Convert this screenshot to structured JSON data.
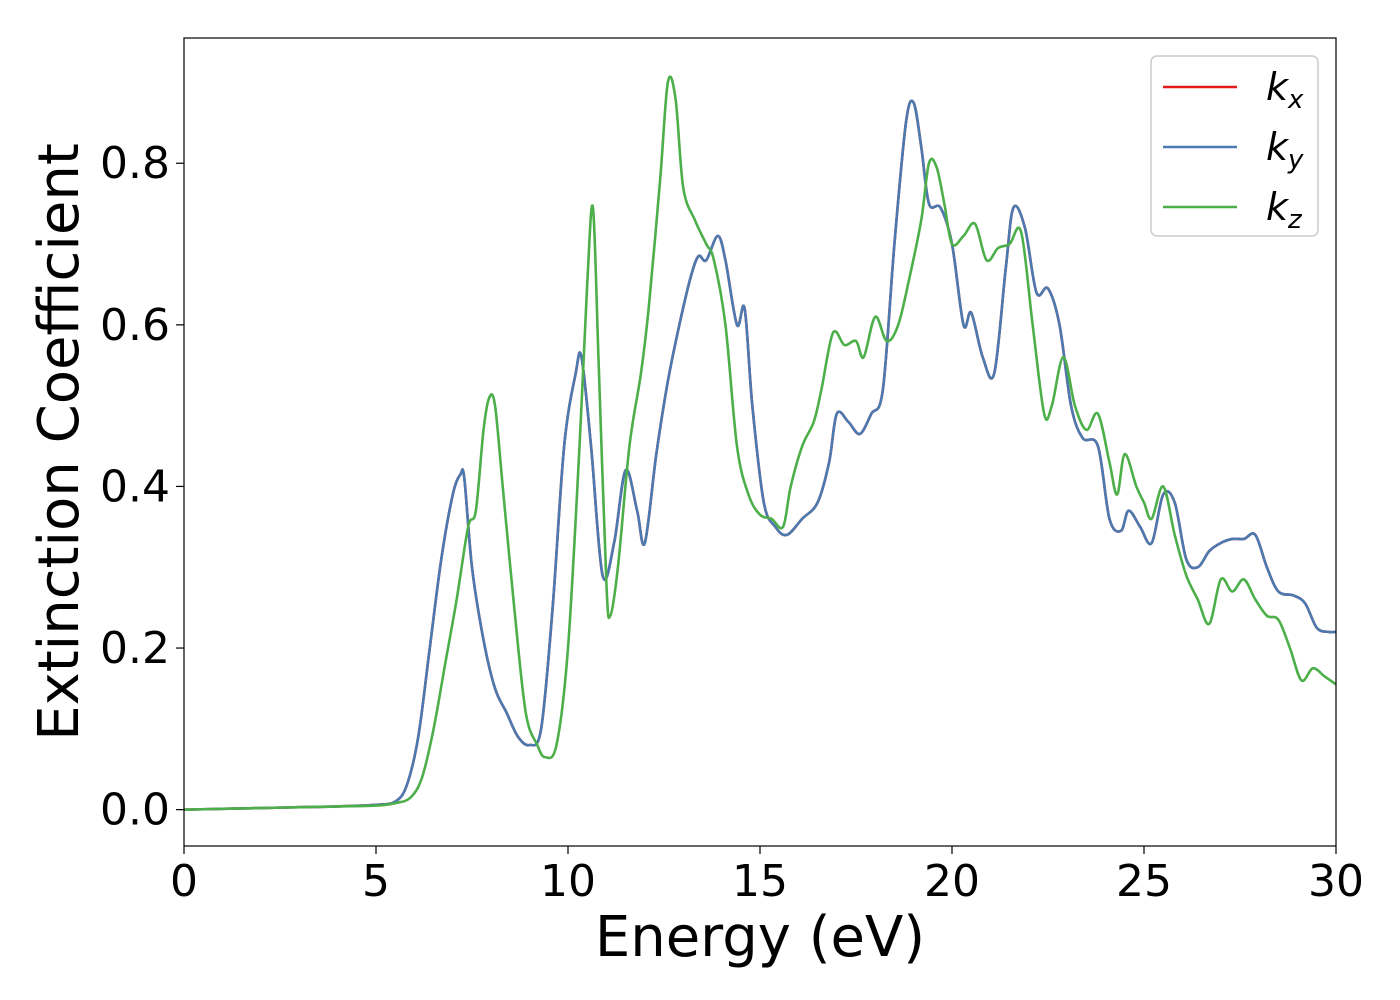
{
  "chart_data": {
    "type": "line",
    "title": "",
    "xlabel": "Energy (eV)",
    "ylabel": "Extinction Coefficient",
    "xlim": [
      0,
      30
    ],
    "ylim": [
      -0.045,
      0.955
    ],
    "xticks": [
      0,
      5,
      10,
      15,
      20,
      25,
      30
    ],
    "xtick_labels": [
      "0",
      "5",
      "10",
      "15",
      "20",
      "25",
      "30"
    ],
    "yticks": [
      0.0,
      0.2,
      0.4,
      0.6,
      0.8
    ],
    "ytick_labels": [
      "0.0",
      "0.2",
      "0.4",
      "0.6",
      "0.8"
    ],
    "grid": false,
    "legend": {
      "position": "top-right",
      "entries": [
        {
          "base": "k",
          "sub": "x",
          "color": "#e41a1c"
        },
        {
          "base": "k",
          "sub": "y",
          "color": "#4a7ab0"
        },
        {
          "base": "k",
          "sub": "z",
          "color": "#4daf4a"
        }
      ]
    },
    "series": [
      {
        "name": "kx",
        "color": "#e41a1c",
        "x": [
          0,
          1,
          2,
          3,
          4,
          5,
          5.5,
          5.8,
          6.1,
          6.4,
          6.7,
          7.0,
          7.2,
          7.3,
          7.5,
          7.8,
          8.1,
          8.4,
          8.7,
          9.0,
          9.3,
          9.6,
          9.9,
          10.2,
          10.35,
          10.6,
          10.9,
          11.2,
          11.5,
          11.8,
          12.0,
          12.3,
          12.6,
          12.9,
          13.2,
          13.4,
          13.6,
          13.9,
          14.1,
          14.4,
          14.6,
          14.8,
          15.1,
          15.4,
          15.7,
          16.1,
          16.5,
          16.8,
          17.0,
          17.3,
          17.6,
          17.9,
          18.2,
          18.5,
          18.8,
          19.0,
          19.2,
          19.4,
          19.7,
          20.0,
          20.3,
          20.5,
          20.8,
          21.1,
          21.4,
          21.6,
          21.9,
          22.2,
          22.5,
          22.8,
          23.1,
          23.4,
          23.8,
          24.1,
          24.4,
          24.6,
          24.9,
          25.2,
          25.5,
          25.8,
          26.1,
          26.4,
          26.7,
          27.0,
          27.3,
          27.6,
          27.9,
          28.2,
          28.5,
          28.9,
          29.2,
          29.5,
          29.8,
          30.0
        ],
        "y": [
          0.0,
          0.001,
          0.002,
          0.003,
          0.004,
          0.006,
          0.01,
          0.03,
          0.09,
          0.2,
          0.31,
          0.39,
          0.415,
          0.41,
          0.3,
          0.21,
          0.15,
          0.12,
          0.09,
          0.08,
          0.1,
          0.25,
          0.45,
          0.54,
          0.56,
          0.45,
          0.29,
          0.33,
          0.42,
          0.37,
          0.33,
          0.44,
          0.53,
          0.6,
          0.66,
          0.685,
          0.68,
          0.71,
          0.68,
          0.6,
          0.62,
          0.5,
          0.38,
          0.35,
          0.34,
          0.36,
          0.38,
          0.43,
          0.49,
          0.48,
          0.465,
          0.49,
          0.52,
          0.7,
          0.85,
          0.875,
          0.82,
          0.75,
          0.745,
          0.7,
          0.6,
          0.615,
          0.56,
          0.54,
          0.67,
          0.745,
          0.72,
          0.64,
          0.645,
          0.6,
          0.5,
          0.46,
          0.45,
          0.36,
          0.345,
          0.37,
          0.35,
          0.33,
          0.39,
          0.38,
          0.31,
          0.3,
          0.32,
          0.33,
          0.335,
          0.335,
          0.34,
          0.3,
          0.27,
          0.265,
          0.255,
          0.225,
          0.22,
          0.22
        ]
      },
      {
        "name": "ky",
        "color": "#4a7ab0",
        "x": [
          0,
          1,
          2,
          3,
          4,
          5,
          5.5,
          5.8,
          6.1,
          6.4,
          6.7,
          7.0,
          7.2,
          7.3,
          7.5,
          7.8,
          8.1,
          8.4,
          8.7,
          9.0,
          9.3,
          9.6,
          9.9,
          10.2,
          10.35,
          10.6,
          10.9,
          11.2,
          11.5,
          11.8,
          12.0,
          12.3,
          12.6,
          12.9,
          13.2,
          13.4,
          13.6,
          13.9,
          14.1,
          14.4,
          14.6,
          14.8,
          15.1,
          15.4,
          15.7,
          16.1,
          16.5,
          16.8,
          17.0,
          17.3,
          17.6,
          17.9,
          18.2,
          18.5,
          18.8,
          19.0,
          19.2,
          19.4,
          19.7,
          20.0,
          20.3,
          20.5,
          20.8,
          21.1,
          21.4,
          21.6,
          21.9,
          22.2,
          22.5,
          22.8,
          23.1,
          23.4,
          23.8,
          24.1,
          24.4,
          24.6,
          24.9,
          25.2,
          25.5,
          25.8,
          26.1,
          26.4,
          26.7,
          27.0,
          27.3,
          27.6,
          27.9,
          28.2,
          28.5,
          28.9,
          29.2,
          29.5,
          29.8,
          30.0
        ],
        "y": [
          0.0,
          0.001,
          0.002,
          0.003,
          0.004,
          0.006,
          0.01,
          0.03,
          0.09,
          0.2,
          0.31,
          0.39,
          0.415,
          0.41,
          0.3,
          0.21,
          0.15,
          0.12,
          0.09,
          0.08,
          0.1,
          0.25,
          0.45,
          0.54,
          0.56,
          0.45,
          0.29,
          0.33,
          0.42,
          0.37,
          0.33,
          0.44,
          0.53,
          0.6,
          0.66,
          0.685,
          0.68,
          0.71,
          0.68,
          0.6,
          0.62,
          0.5,
          0.38,
          0.35,
          0.34,
          0.36,
          0.38,
          0.43,
          0.49,
          0.48,
          0.465,
          0.49,
          0.52,
          0.7,
          0.85,
          0.875,
          0.82,
          0.75,
          0.745,
          0.7,
          0.6,
          0.615,
          0.56,
          0.54,
          0.67,
          0.745,
          0.72,
          0.64,
          0.645,
          0.6,
          0.5,
          0.46,
          0.45,
          0.36,
          0.345,
          0.37,
          0.35,
          0.33,
          0.39,
          0.38,
          0.31,
          0.3,
          0.32,
          0.33,
          0.335,
          0.335,
          0.34,
          0.3,
          0.27,
          0.265,
          0.255,
          0.225,
          0.22,
          0.22
        ]
      },
      {
        "name": "kz",
        "color": "#4daf4a",
        "x": [
          0,
          1,
          2,
          3,
          4,
          5,
          5.5,
          5.9,
          6.2,
          6.5,
          6.8,
          7.1,
          7.4,
          7.6,
          7.8,
          7.95,
          8.1,
          8.3,
          8.6,
          8.9,
          9.2,
          9.4,
          9.7,
          10.0,
          10.3,
          10.5,
          10.65,
          10.8,
          11.0,
          11.1,
          11.3,
          11.6,
          11.9,
          12.1,
          12.4,
          12.6,
          12.8,
          13.0,
          13.3,
          13.6,
          13.8,
          14.1,
          14.4,
          14.7,
          15.0,
          15.3,
          15.6,
          15.8,
          16.1,
          16.4,
          16.6,
          16.9,
          17.2,
          17.5,
          17.7,
          18.0,
          18.3,
          18.6,
          18.9,
          19.2,
          19.4,
          19.6,
          19.8,
          20.0,
          20.3,
          20.6,
          20.9,
          21.2,
          21.5,
          21.8,
          22.1,
          22.4,
          22.6,
          22.9,
          23.2,
          23.5,
          23.8,
          24.1,
          24.3,
          24.5,
          24.8,
          25.0,
          25.2,
          25.5,
          25.8,
          26.1,
          26.4,
          26.7,
          27.0,
          27.3,
          27.6,
          27.9,
          28.2,
          28.5,
          28.8,
          29.1,
          29.4,
          29.7,
          30.0
        ],
        "y": [
          0.0,
          0.001,
          0.002,
          0.003,
          0.004,
          0.005,
          0.008,
          0.015,
          0.04,
          0.1,
          0.18,
          0.26,
          0.35,
          0.37,
          0.47,
          0.51,
          0.5,
          0.4,
          0.25,
          0.12,
          0.08,
          0.065,
          0.08,
          0.2,
          0.45,
          0.65,
          0.745,
          0.55,
          0.28,
          0.24,
          0.3,
          0.45,
          0.54,
          0.62,
          0.78,
          0.9,
          0.88,
          0.77,
          0.73,
          0.7,
          0.68,
          0.6,
          0.45,
          0.39,
          0.365,
          0.36,
          0.35,
          0.4,
          0.45,
          0.48,
          0.52,
          0.59,
          0.575,
          0.58,
          0.56,
          0.61,
          0.58,
          0.6,
          0.66,
          0.73,
          0.8,
          0.795,
          0.75,
          0.7,
          0.71,
          0.725,
          0.68,
          0.695,
          0.7,
          0.715,
          0.6,
          0.49,
          0.5,
          0.56,
          0.5,
          0.47,
          0.49,
          0.43,
          0.39,
          0.44,
          0.4,
          0.38,
          0.36,
          0.4,
          0.34,
          0.29,
          0.26,
          0.23,
          0.285,
          0.27,
          0.285,
          0.26,
          0.24,
          0.235,
          0.2,
          0.16,
          0.175,
          0.165,
          0.155
        ]
      }
    ]
  }
}
